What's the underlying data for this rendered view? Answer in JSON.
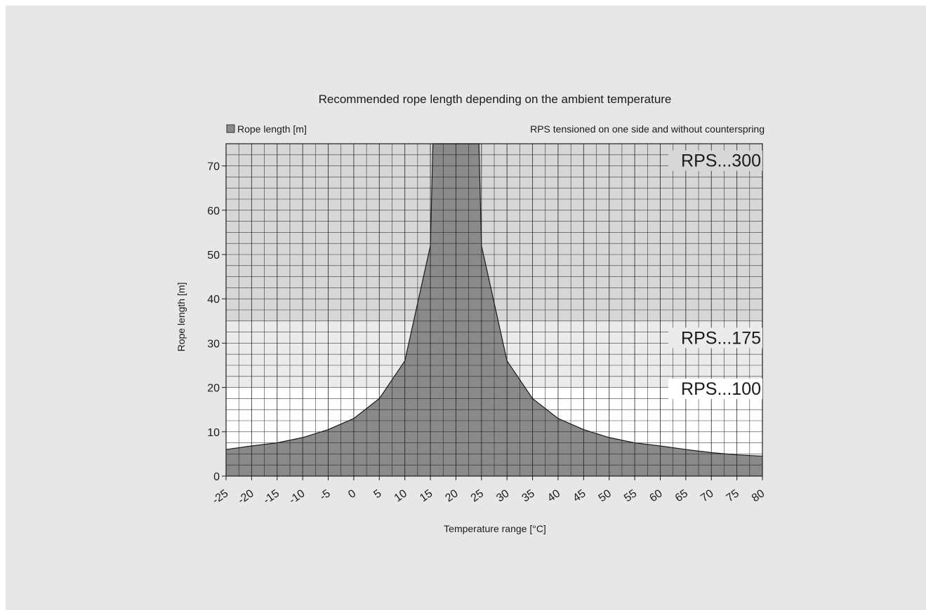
{
  "chart_data": {
    "type": "area",
    "title": "Recommended rope length depending on the ambient temperature",
    "legend_label": "Rope length [m]",
    "note": "RPS tensioned on one side and without counterspring",
    "xlabel": "Temperature range [°C]",
    "ylabel": "Rope length [m]",
    "xlim": [
      -25,
      80
    ],
    "ylim": [
      0,
      75
    ],
    "x_ticks": [
      "-25",
      "-20",
      "-15",
      "-10",
      "-5",
      "0",
      "5",
      "10",
      "15",
      "20",
      "25",
      "30",
      "35",
      "40",
      "45",
      "50",
      "55",
      "60",
      "65",
      "70",
      "75",
      "80"
    ],
    "y_ticks": [
      "0",
      "10",
      "20",
      "30",
      "40",
      "50",
      "60",
      "70"
    ],
    "grid": true,
    "legend_position": "top-left",
    "zones": [
      {
        "label": "RPS...100",
        "from": 0,
        "to": 20,
        "color": "#ffffff"
      },
      {
        "label": "RPS...175",
        "from": 20,
        "to": 35,
        "color": "#ebebec"
      },
      {
        "label": "RPS...300",
        "from": 35,
        "to": 75,
        "color": "#d6d7d8"
      }
    ],
    "series": [
      {
        "name": "Rope length [m]",
        "color": "#8a8a8a",
        "x": [
          -25,
          -20,
          -15,
          -10,
          -5,
          0,
          5,
          10,
          15,
          15.5,
          24.5,
          25,
          30,
          35,
          40,
          45,
          50,
          55,
          60,
          65,
          70,
          75,
          80
        ],
        "y": [
          6,
          6.8,
          7.5,
          8.7,
          10.5,
          13,
          17.5,
          26,
          52,
          75,
          75,
          52,
          26,
          17.5,
          13,
          10.5,
          8.7,
          7.5,
          6.8,
          6,
          5.3,
          4.8,
          4.5
        ]
      }
    ]
  }
}
